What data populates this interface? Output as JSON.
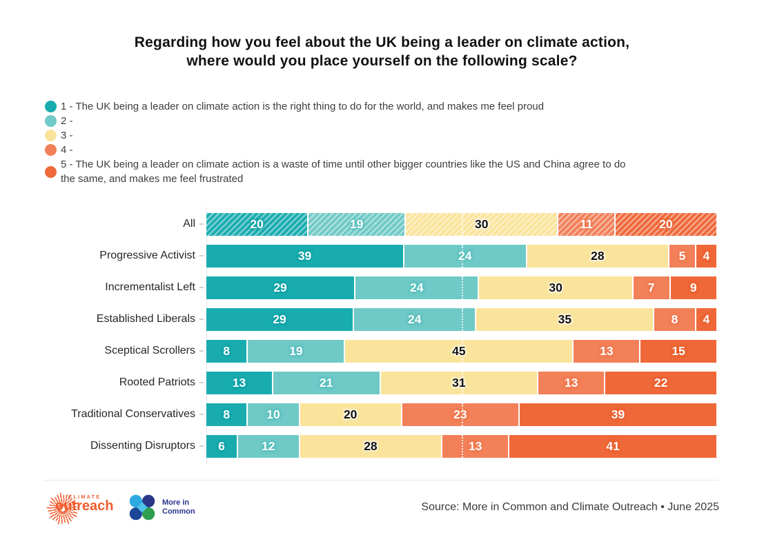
{
  "title": {
    "line1": "Regarding how you feel about the UK being a leader on climate action,",
    "line2": "where would you place yourself on the following scale?"
  },
  "chart_data": {
    "type": "bar",
    "orientation": "horizontal",
    "stacked": true,
    "unit": "percent",
    "xlim": [
      0,
      100
    ],
    "grid": false,
    "legend_position": "top-left",
    "categories": [
      "All",
      "Progressive Activist",
      "Incrementalist Left",
      "Established Liberals",
      "Sceptical Scrollers",
      "Rooted Patriots",
      "Traditional Conservatives",
      "Dissenting Disruptors"
    ],
    "series": [
      {
        "name": "1 - The UK being a leader on climate action is the right thing to do for the world, and makes me feel proud",
        "color": "#19ACAF",
        "text_color": "#ffffff",
        "glow": "#0FA0A4",
        "values": [
          20,
          39,
          29,
          29,
          8,
          13,
          8,
          6
        ]
      },
      {
        "name": "2 -",
        "color": "#6FC9C6",
        "text_color": "#ffffff",
        "glow": "#54BFBC",
        "values": [
          19,
          24,
          24,
          24,
          19,
          21,
          10,
          12
        ]
      },
      {
        "name": "3 -",
        "color": "#FAE49B",
        "text_color": "#111111",
        "glow": "rgba(255,255,255,0.9)",
        "values": [
          30,
          28,
          30,
          35,
          45,
          31,
          20,
          28
        ]
      },
      {
        "name": "4 -",
        "color": "#F28059",
        "text_color": "#ffffff",
        "glow": "#EF774E",
        "values": [
          11,
          5,
          7,
          8,
          13,
          13,
          23,
          13
        ]
      },
      {
        "name": "5 - The UK being a leader on climate action is a waste of time until other bigger countries like the US and China agree to do the same, and makes me feel frustrated",
        "color": "#EF6839",
        "text_color": "#ffffff",
        "glow": "#E95E2C",
        "values": [
          20,
          4,
          9,
          4,
          15,
          22,
          39,
          41
        ]
      }
    ],
    "hatched_category": "All",
    "midline_percent": 50
  },
  "footer": {
    "source": "Source: More in Common and Climate Outreach • June 2025",
    "logos": {
      "climate_outreach": {
        "top": "CLIMATE",
        "name": "outreach",
        "color": "#F15B2D"
      },
      "more_in_common": {
        "line1": "More in",
        "line2": "Common"
      }
    }
  }
}
